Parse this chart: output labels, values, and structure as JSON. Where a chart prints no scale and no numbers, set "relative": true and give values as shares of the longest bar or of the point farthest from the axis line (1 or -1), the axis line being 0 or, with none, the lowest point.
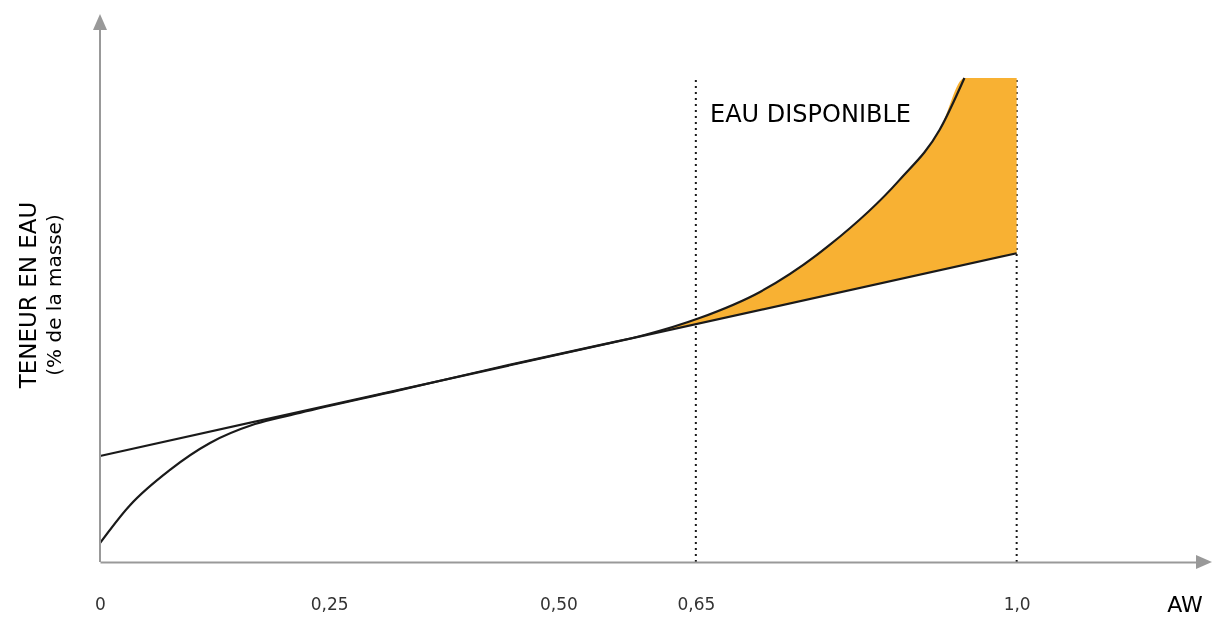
{
  "chart_data": {
    "type": "line",
    "relative": true,
    "xlabel": "AW",
    "ylabel": "TENEUR EN EAU\n(% de la masse)",
    "xlim": [
      0,
      1.2
    ],
    "xticks": [
      {
        "value": 0,
        "label": "0"
      },
      {
        "value": 0.25,
        "label": "0,25"
      },
      {
        "value": 0.5,
        "label": "0,50"
      },
      {
        "value": 0.65,
        "label": "0,65"
      },
      {
        "value": 1,
        "label": "1,0"
      }
    ],
    "series": [
      {
        "type": "area",
        "color": "#f8b133",
        "x": [
          0.6,
          0.654,
          0.72,
          0.796,
          0.872,
          0.916,
          0.943,
          1.0
        ],
        "values": [
          0.47,
          0.504,
          0.558,
          0.655,
          0.789,
          0.893,
          1,
          1
        ]
      },
      {
        "color": "#1a1a1a",
        "x": [
          0,
          0.033,
          0.076,
          0.12,
          0.169,
          0.218,
          0.327,
          0.436,
          0.545,
          0.594,
          0.654,
          0.72,
          0.796,
          0.872,
          0.916,
          0.943
        ],
        "values": [
          0.039,
          0.118,
          0.19,
          0.246,
          0.285,
          0.308,
          0.355,
          0.403,
          0.448,
          0.469,
          0.504,
          0.558,
          0.655,
          0.789,
          0.893,
          1
        ]
      },
      {
        "color": "#1a1a1a",
        "x": [
          0,
          1.0
        ],
        "values": [
          0.219,
          0.638
        ]
      }
    ],
    "ref_lines": [
      {
        "axis": "x",
        "value": 0.65,
        "line_style": "dotted"
      },
      {
        "axis": "x",
        "value": 1.0,
        "line_style": "dotted"
      }
    ],
    "annotations": [
      "EAU DISPONIBLE"
    ],
    "marker": "none"
  }
}
